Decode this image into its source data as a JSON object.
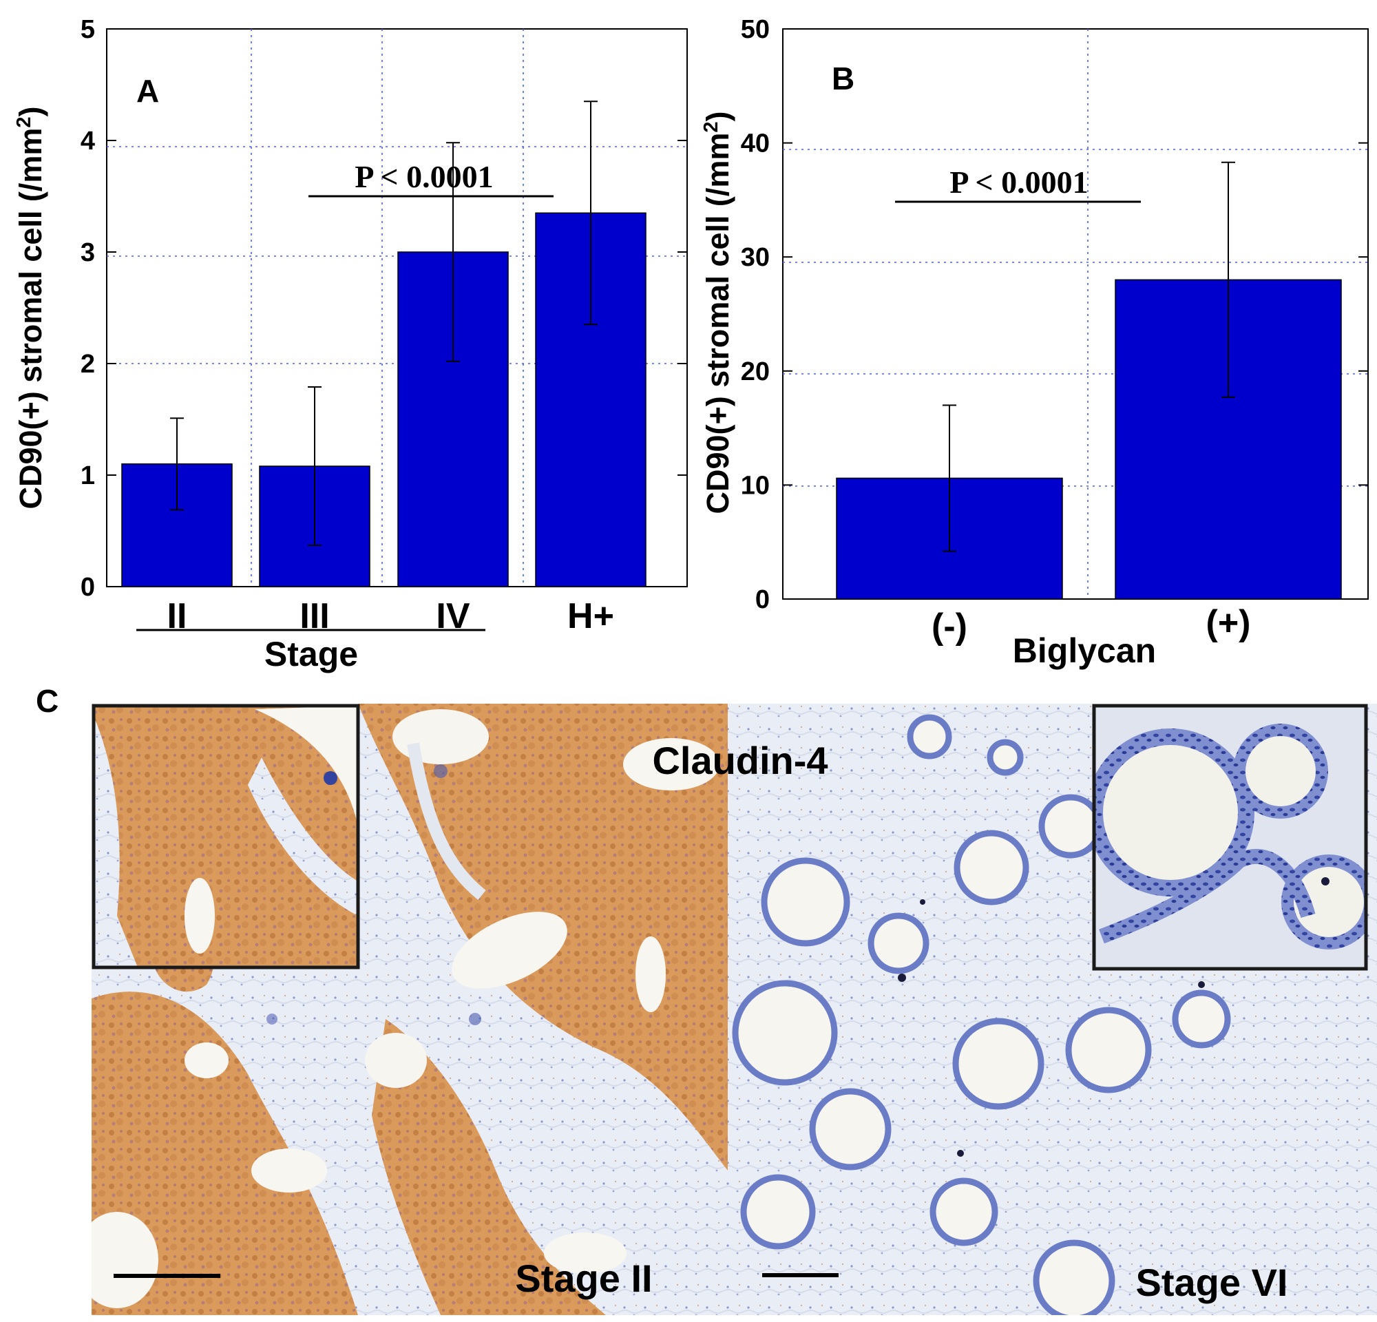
{
  "colors": {
    "bar": "#0000cc",
    "grid": "#4d5de8",
    "axis": "#000000",
    "stain_brown": "#c8844a",
    "stain_blue": "#3d4fa8",
    "tissue_pale": "#eef1f6"
  },
  "chart_data": [
    {
      "type": "bar",
      "panel_label": "A",
      "categories": [
        "II",
        "III",
        "IV",
        "H+"
      ],
      "values": [
        1.1,
        1.08,
        3.0,
        3.35
      ],
      "errors": [
        0.41,
        0.71,
        0.98,
        1.0
      ],
      "ylabel_main": "CD90(+) stromal cell (/mm",
      "ylabel_sup": "2",
      "ylabel_end": ")",
      "xlabel": "Stage",
      "ylim": [
        0,
        5
      ],
      "yticks": [
        "0",
        "1",
        "2",
        "3",
        "4",
        "5"
      ],
      "significance": "P < 0.0001",
      "grid": true
    },
    {
      "type": "bar",
      "panel_label": "B",
      "categories": [
        "(-)",
        "(+)"
      ],
      "values": [
        10.6,
        28.0
      ],
      "errors": [
        6.4,
        10.3
      ],
      "ylabel_main": "CD90(+) stromal cell (/mm",
      "ylabel_sup": "2",
      "ylabel_end": ")",
      "xlabel": "Biglycan",
      "ylim": [
        0,
        50
      ],
      "yticks": [
        "0",
        "10",
        "20",
        "30",
        "40",
        "50"
      ],
      "significance": "P < 0.0001",
      "grid": true
    }
  ],
  "panel_c": {
    "label": "C",
    "stain": "Claudin-4",
    "left_caption": "Stage II",
    "right_caption": "Stage VI"
  }
}
